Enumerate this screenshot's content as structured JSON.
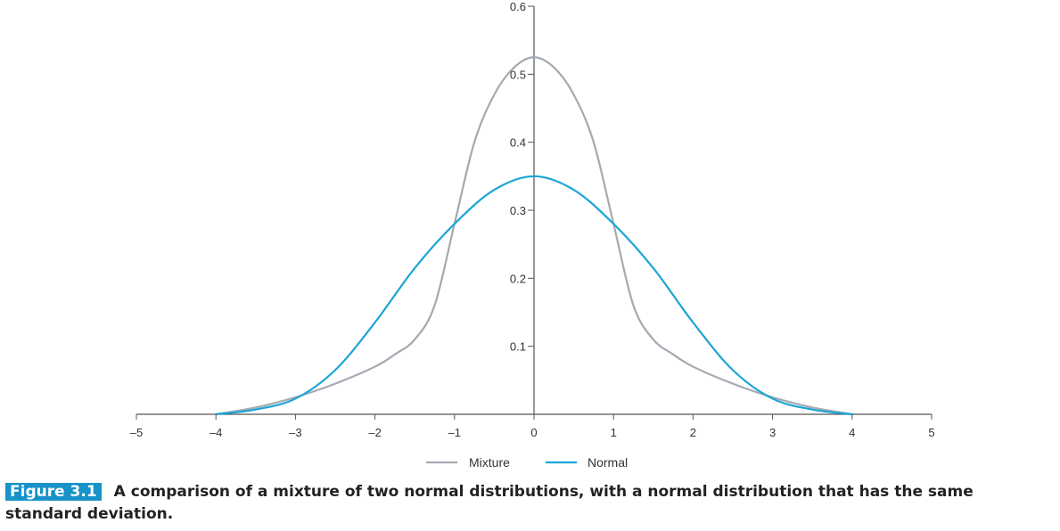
{
  "chart_data": {
    "type": "line",
    "xlim": [
      -5,
      5
    ],
    "ylim": [
      0,
      0.6
    ],
    "x_ticks": [
      -5,
      -4,
      -3,
      -2,
      -1,
      0,
      1,
      2,
      3,
      4,
      5
    ],
    "x_tick_labels": [
      "–5",
      "–4",
      "–3",
      "–2",
      "–1",
      "0",
      "1",
      "2",
      "3",
      "4",
      "5"
    ],
    "y_ticks": [
      0.1,
      0.2,
      0.3,
      0.4,
      0.5,
      0.6
    ],
    "y_tick_labels": [
      "0.1",
      "0.2",
      "0.3",
      "0.4",
      "0.5",
      "0.6"
    ],
    "grid": false,
    "legend_position": "bottom-center",
    "series": [
      {
        "name": "Mixture",
        "color": "#a3aab2",
        "x": [
          -4,
          -3.5,
          -3,
          -2.5,
          -2,
          -1.75,
          -1.5,
          -1.25,
          -1,
          -0.75,
          -0.5,
          -0.25,
          0,
          0.25,
          0.5,
          0.75,
          1,
          1.25,
          1.5,
          1.75,
          2,
          2.5,
          3,
          3.5,
          4
        ],
        "y": [
          0.0,
          0.01,
          0.025,
          0.045,
          0.07,
          0.088,
          0.11,
          0.16,
          0.28,
          0.4,
          0.47,
          0.51,
          0.525,
          0.51,
          0.47,
          0.4,
          0.28,
          0.16,
          0.11,
          0.088,
          0.07,
          0.045,
          0.025,
          0.01,
          0.0
        ]
      },
      {
        "name": "Normal",
        "color": "#1ba5d6",
        "x": [
          -4,
          -3.5,
          -3,
          -2.5,
          -2,
          -1.5,
          -1,
          -0.5,
          0,
          0.5,
          1,
          1.5,
          2,
          2.5,
          3,
          3.5,
          4
        ],
        "y": [
          0.0,
          0.007,
          0.023,
          0.065,
          0.135,
          0.215,
          0.28,
          0.33,
          0.35,
          0.33,
          0.28,
          0.215,
          0.135,
          0.065,
          0.023,
          0.007,
          0.0
        ]
      }
    ]
  },
  "caption": {
    "figure_label": "Figure 3.1",
    "text": "A comparison of a mixture of two normal distributions, with a normal distribution that has the same standard deviation."
  }
}
